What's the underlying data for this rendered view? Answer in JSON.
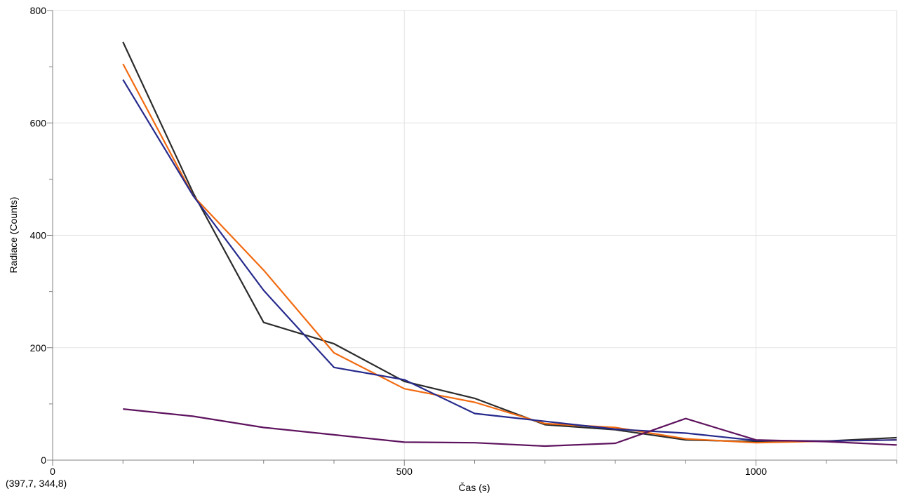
{
  "chart_data": {
    "type": "line",
    "xlabel": "Čas (s)",
    "ylabel": "Radiace (Counts)",
    "xlim": [
      0,
      1200
    ],
    "ylim": [
      0,
      800
    ],
    "x_ticks": [
      0,
      500,
      1000
    ],
    "x_tick_labels": [
      "0",
      "500",
      "1000"
    ],
    "x_minor_step": 100,
    "y_ticks": [
      0,
      200,
      400,
      600,
      800
    ],
    "y_tick_labels": [
      "0",
      "200",
      "400",
      "600",
      "800"
    ],
    "y_minor_step": 100,
    "grid": true,
    "series": [
      {
        "color": "#2b2b2b",
        "x": [
          100,
          200,
          300,
          400,
          500,
          600,
          700,
          800,
          900,
          1000,
          1100,
          1200
        ],
        "y": [
          744,
          475,
          245,
          207,
          140,
          110,
          63,
          54,
          36,
          33,
          34,
          40
        ]
      },
      {
        "color": "#f26a10",
        "x": [
          100,
          200,
          300,
          400,
          500,
          600,
          700,
          800,
          900,
          1000,
          1100,
          1200
        ],
        "y": [
          705,
          470,
          338,
          191,
          127,
          103,
          65,
          58,
          38,
          31,
          34,
          36
        ]
      },
      {
        "color": "#262a8c",
        "x": [
          100,
          200,
          300,
          400,
          500,
          600,
          700,
          800,
          900,
          1000,
          1100,
          1200
        ],
        "y": [
          677,
          470,
          302,
          165,
          143,
          83,
          69,
          55,
          48,
          35,
          34,
          36
        ]
      },
      {
        "color": "#5e135e",
        "x": [
          100,
          200,
          300,
          400,
          500,
          600,
          700,
          800,
          900,
          1000,
          1100,
          1200
        ],
        "y": [
          91,
          78,
          58,
          45,
          32,
          31,
          25,
          30,
          74,
          36,
          33,
          27
        ]
      }
    ]
  },
  "cursor_readout": "(397,7, 344,8)"
}
